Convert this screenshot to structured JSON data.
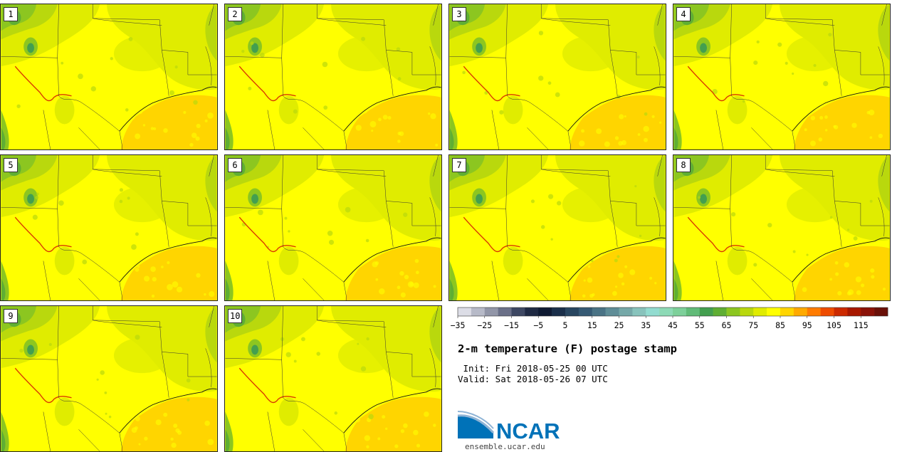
{
  "panels": [
    "1",
    "2",
    "3",
    "4",
    "5",
    "6",
    "7",
    "8",
    "9",
    "10"
  ],
  "colorbar": {
    "colors": [
      "#dcdde6",
      "#b7bac8",
      "#9296a8",
      "#6b7088",
      "#3e4863",
      "#1f2a44",
      "#0f1b33",
      "#1a2f4a",
      "#284660",
      "#365a74",
      "#4a7385",
      "#5f8d97",
      "#75a8a8",
      "#88c3bc",
      "#92dcd0",
      "#8ddab6",
      "#7dd09a",
      "#61bb78",
      "#439f4f",
      "#5fae33",
      "#8cc620",
      "#b9d80d",
      "#e0ec00",
      "#ffff00",
      "#ffd500",
      "#ffaa00",
      "#ff7b00",
      "#ee4c00",
      "#cc2a00",
      "#a81800",
      "#8a1208",
      "#6a1008"
    ],
    "tick_labels": [
      "−35",
      "−25",
      "−15",
      "−5",
      "5",
      "15",
      "25",
      "35",
      "45",
      "55",
      "65",
      "75",
      "85",
      "95",
      "105",
      "115"
    ]
  },
  "title": "2-m temperature (F) postage stamp",
  "init": " Init: Fri 2018-05-25 00 UTC",
  "valid": "Valid: Sat 2018-05-26 07 UTC",
  "logo": {
    "text": "NCAR",
    "url": "ensemble.ucar.edu",
    "blue": "#0072b8"
  },
  "map_colors": {
    "land": "#ffff00",
    "dry": "#e0ec00",
    "green1": "#b9d80d",
    "green2": "#8cc620",
    "green3": "#5fae33",
    "dark": "#439f4f",
    "gulf": "#ffd500",
    "hot": "#ffaa00"
  }
}
